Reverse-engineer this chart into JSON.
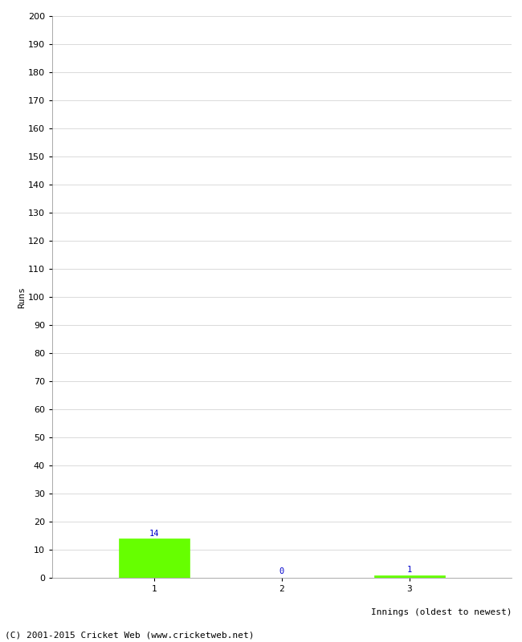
{
  "innings": [
    1,
    2,
    3
  ],
  "runs": [
    14,
    0,
    1
  ],
  "bar_color": "#66ff00",
  "bar_edge_color": "#66ff00",
  "value_color": "#0000cc",
  "xlabel": "Innings (oldest to newest)",
  "ylabel": "Runs",
  "ylim": [
    0,
    200
  ],
  "yticks": [
    0,
    10,
    20,
    30,
    40,
    50,
    60,
    70,
    80,
    90,
    100,
    110,
    120,
    130,
    140,
    150,
    160,
    170,
    180,
    190,
    200
  ],
  "xtick_labels": [
    "1",
    "2",
    "3"
  ],
  "background_color": "#ffffff",
  "grid_color": "#cccccc",
  "footer": "(C) 2001-2015 Cricket Web (www.cricketweb.net)",
  "value_fontsize": 7.5,
  "axis_label_fontsize": 8,
  "tick_fontsize": 8,
  "footer_fontsize": 8,
  "bar_width": 0.55
}
